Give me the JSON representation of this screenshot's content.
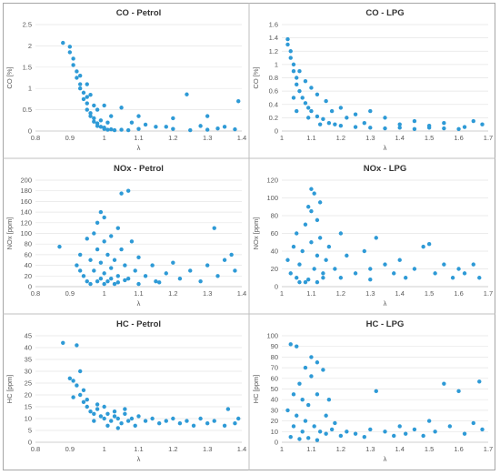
{
  "chart_data": [
    {
      "type": "scatter",
      "title": "CO - Petrol",
      "xlabel": "λ",
      "ylabel": "CO [%]",
      "xlim": [
        0.8,
        1.4
      ],
      "ylim": [
        0,
        2.5
      ],
      "xticks": [
        "0.8",
        "0.9",
        "1",
        "1.1",
        "1.2",
        "1.3",
        "1.4"
      ],
      "yticks": [
        "0",
        "0.5",
        "1",
        "1.5",
        "2",
        "2.5"
      ],
      "color": "#2e9ad6",
      "points": [
        [
          0.88,
          2.07
        ],
        [
          0.9,
          1.98
        ],
        [
          0.9,
          1.85
        ],
        [
          0.91,
          1.7
        ],
        [
          0.91,
          1.55
        ],
        [
          0.92,
          1.4
        ],
        [
          0.92,
          1.25
        ],
        [
          0.93,
          1.1
        ],
        [
          0.93,
          1.0
        ],
        [
          0.94,
          0.9
        ],
        [
          0.94,
          0.75
        ],
        [
          0.95,
          0.65
        ],
        [
          0.95,
          0.5
        ],
        [
          0.96,
          0.42
        ],
        [
          0.96,
          0.35
        ],
        [
          0.97,
          0.3
        ],
        [
          0.97,
          0.22
        ],
        [
          0.98,
          0.18
        ],
        [
          0.98,
          0.12
        ],
        [
          0.99,
          0.1
        ],
        [
          1.0,
          0.08
        ],
        [
          1.0,
          0.05
        ],
        [
          1.01,
          0.03
        ],
        [
          1.02,
          0.04
        ],
        [
          1.03,
          0.02
        ],
        [
          1.05,
          0.03
        ],
        [
          1.07,
          0.02
        ],
        [
          1.1,
          0.05
        ],
        [
          1.15,
          0.1
        ],
        [
          1.2,
          0.05
        ],
        [
          1.25,
          0.02
        ],
        [
          1.3,
          0.03
        ],
        [
          1.35,
          0.1
        ],
        [
          1.38,
          0.04
        ],
        [
          1.24,
          0.86
        ],
        [
          1.39,
          0.7
        ],
        [
          1.3,
          0.35
        ],
        [
          1.2,
          0.3
        ],
        [
          1.1,
          0.35
        ],
        [
          1.05,
          0.55
        ],
        [
          1.0,
          0.6
        ],
        [
          0.96,
          0.85
        ],
        [
          0.93,
          1.3
        ],
        [
          0.95,
          1.1
        ],
        [
          0.98,
          0.5
        ],
        [
          1.02,
          0.35
        ],
        [
          1.08,
          0.2
        ],
        [
          1.12,
          0.15
        ],
        [
          1.18,
          0.1
        ],
        [
          1.28,
          0.12
        ],
        [
          1.33,
          0.06
        ],
        [
          0.99,
          0.25
        ],
        [
          1.01,
          0.2
        ],
        [
          0.97,
          0.6
        ],
        [
          0.95,
          0.8
        ]
      ]
    },
    {
      "type": "scatter",
      "title": "CO - LPG",
      "xlabel": "λ",
      "ylabel": "CO [%]",
      "xlim": [
        1,
        1.7
      ],
      "ylim": [
        0,
        1.6
      ],
      "xticks": [
        "1",
        "1.1",
        "1.2",
        "1.3",
        "1.4",
        "1.5",
        "1.6",
        "1.7"
      ],
      "yticks": [
        "0",
        "0.2",
        "0.4",
        "0.6",
        "0.8",
        "1",
        "1.2",
        "1.4",
        "1.6"
      ],
      "color": "#2e9ad6",
      "points": [
        [
          1.02,
          1.38
        ],
        [
          1.02,
          1.3
        ],
        [
          1.03,
          1.2
        ],
        [
          1.03,
          1.1
        ],
        [
          1.04,
          1.0
        ],
        [
          1.04,
          0.9
        ],
        [
          1.05,
          0.8
        ],
        [
          1.05,
          0.7
        ],
        [
          1.06,
          0.6
        ],
        [
          1.07,
          0.5
        ],
        [
          1.08,
          0.42
        ],
        [
          1.09,
          0.35
        ],
        [
          1.1,
          0.3
        ],
        [
          1.12,
          0.22
        ],
        [
          1.14,
          0.18
        ],
        [
          1.16,
          0.12
        ],
        [
          1.18,
          0.1
        ],
        [
          1.2,
          0.08
        ],
        [
          1.25,
          0.06
        ],
        [
          1.3,
          0.05
        ],
        [
          1.35,
          0.04
        ],
        [
          1.4,
          0.05
        ],
        [
          1.45,
          0.03
        ],
        [
          1.5,
          0.05
        ],
        [
          1.55,
          0.04
        ],
        [
          1.6,
          0.03
        ],
        [
          1.65,
          0.15
        ],
        [
          1.68,
          0.1
        ],
        [
          1.3,
          0.3
        ],
        [
          1.25,
          0.25
        ],
        [
          1.2,
          0.35
        ],
        [
          1.15,
          0.45
        ],
        [
          1.1,
          0.65
        ],
        [
          1.08,
          0.75
        ],
        [
          1.06,
          0.9
        ],
        [
          1.12,
          0.55
        ],
        [
          1.35,
          0.2
        ],
        [
          1.45,
          0.15
        ],
        [
          1.55,
          0.12
        ],
        [
          1.22,
          0.2
        ],
        [
          1.17,
          0.3
        ],
        [
          1.05,
          0.3
        ],
        [
          1.04,
          0.5
        ],
        [
          1.09,
          0.2
        ],
        [
          1.13,
          0.1
        ],
        [
          1.28,
          0.12
        ],
        [
          1.4,
          0.1
        ],
        [
          1.5,
          0.08
        ],
        [
          1.62,
          0.06
        ]
      ]
    },
    {
      "type": "scatter",
      "title": "NOx - Petrol",
      "xlabel": "λ",
      "ylabel": "NOx [ppm]",
      "xlim": [
        0.8,
        1.4
      ],
      "ylim": [
        0,
        200
      ],
      "xticks": [
        "0.8",
        "0.9",
        "1",
        "1.1",
        "1.2",
        "1.3",
        "1.4"
      ],
      "yticks": [
        "0",
        "20",
        "40",
        "60",
        "80",
        "100",
        "120",
        "140",
        "160",
        "180",
        "200"
      ],
      "color": "#2e9ad6",
      "points": [
        [
          0.87,
          75
        ],
        [
          0.92,
          40
        ],
        [
          0.93,
          60
        ],
        [
          0.94,
          20
        ],
        [
          0.95,
          90
        ],
        [
          0.95,
          10
        ],
        [
          0.96,
          50
        ],
        [
          0.97,
          30
        ],
        [
          0.97,
          100
        ],
        [
          0.98,
          120
        ],
        [
          0.98,
          70
        ],
        [
          0.99,
          15
        ],
        [
          0.99,
          45
        ],
        [
          1.0,
          25
        ],
        [
          1.0,
          85
        ],
        [
          1.0,
          130
        ],
        [
          1.01,
          60
        ],
        [
          1.01,
          10
        ],
        [
          1.02,
          35
        ],
        [
          1.02,
          95
        ],
        [
          1.03,
          5
        ],
        [
          1.03,
          50
        ],
        [
          1.04,
          110
        ],
        [
          1.04,
          20
        ],
        [
          1.05,
          175
        ],
        [
          1.05,
          70
        ],
        [
          1.06,
          40
        ],
        [
          1.07,
          180
        ],
        [
          1.07,
          15
        ],
        [
          1.08,
          85
        ],
        [
          1.09,
          30
        ],
        [
          1.1,
          55
        ],
        [
          1.12,
          20
        ],
        [
          1.14,
          40
        ],
        [
          1.15,
          10
        ],
        [
          1.18,
          25
        ],
        [
          1.2,
          45
        ],
        [
          1.22,
          15
        ],
        [
          1.25,
          30
        ],
        [
          1.28,
          10
        ],
        [
          1.3,
          40
        ],
        [
          1.32,
          110
        ],
        [
          1.33,
          20
        ],
        [
          1.35,
          50
        ],
        [
          1.37,
          60
        ],
        [
          1.38,
          30
        ],
        [
          0.96,
          5
        ],
        [
          0.98,
          10
        ],
        [
          1.0,
          5
        ],
        [
          1.02,
          15
        ],
        [
          1.04,
          8
        ],
        [
          1.06,
          12
        ],
        [
          1.1,
          5
        ],
        [
          1.16,
          8
        ],
        [
          0.93,
          30
        ],
        [
          0.99,
          140
        ]
      ]
    },
    {
      "type": "scatter",
      "title": "NOx - LPG",
      "xlabel": "λ",
      "ylabel": "NOx [ppm]",
      "xlim": [
        1,
        1.7
      ],
      "ylim": [
        0,
        120
      ],
      "xticks": [
        "1",
        "1.1",
        "1.2",
        "1.3",
        "1.4",
        "1.5",
        "1.6",
        "1.7"
      ],
      "yticks": [
        "0",
        "20",
        "40",
        "60",
        "80",
        "100",
        "120"
      ],
      "color": "#2e9ad6",
      "points": [
        [
          1.02,
          30
        ],
        [
          1.03,
          15
        ],
        [
          1.04,
          45
        ],
        [
          1.05,
          60
        ],
        [
          1.05,
          10
        ],
        [
          1.06,
          25
        ],
        [
          1.07,
          40
        ],
        [
          1.08,
          70
        ],
        [
          1.08,
          5
        ],
        [
          1.09,
          90
        ],
        [
          1.1,
          110
        ],
        [
          1.1,
          50
        ],
        [
          1.11,
          105
        ],
        [
          1.11,
          20
        ],
        [
          1.12,
          75
        ],
        [
          1.12,
          35
        ],
        [
          1.13,
          55
        ],
        [
          1.14,
          15
        ],
        [
          1.15,
          30
        ],
        [
          1.16,
          45
        ],
        [
          1.18,
          20
        ],
        [
          1.2,
          60
        ],
        [
          1.22,
          35
        ],
        [
          1.25,
          15
        ],
        [
          1.28,
          40
        ],
        [
          1.3,
          20
        ],
        [
          1.32,
          55
        ],
        [
          1.35,
          25
        ],
        [
          1.38,
          15
        ],
        [
          1.4,
          30
        ],
        [
          1.42,
          10
        ],
        [
          1.45,
          20
        ],
        [
          1.48,
          45
        ],
        [
          1.5,
          48
        ],
        [
          1.52,
          15
        ],
        [
          1.55,
          25
        ],
        [
          1.58,
          10
        ],
        [
          1.6,
          20
        ],
        [
          1.62,
          15
        ],
        [
          1.65,
          25
        ],
        [
          1.67,
          10
        ],
        [
          1.06,
          5
        ],
        [
          1.09,
          8
        ],
        [
          1.12,
          5
        ],
        [
          1.14,
          10
        ],
        [
          1.2,
          10
        ],
        [
          1.3,
          8
        ],
        [
          1.1,
          85
        ],
        [
          1.13,
          95
        ]
      ]
    },
    {
      "type": "scatter",
      "title": "HC - Petrol",
      "xlabel": "λ",
      "ylabel": "HC [ppm]",
      "xlim": [
        0.8,
        1.4
      ],
      "ylim": [
        0,
        45
      ],
      "xticks": [
        "0.8",
        "0.9",
        "1",
        "1.1",
        "1.2",
        "1.3",
        "1.4"
      ],
      "yticks": [
        "0",
        "5",
        "10",
        "15",
        "20",
        "25",
        "30",
        "35",
        "40",
        "45"
      ],
      "color": "#2e9ad6",
      "points": [
        [
          0.88,
          42
        ],
        [
          0.92,
          41
        ],
        [
          0.9,
          27
        ],
        [
          0.91,
          26
        ],
        [
          0.93,
          30
        ],
        [
          0.92,
          24
        ],
        [
          0.91,
          19
        ],
        [
          0.93,
          20
        ],
        [
          0.94,
          17
        ],
        [
          0.95,
          15
        ],
        [
          0.96,
          13
        ],
        [
          0.97,
          12
        ],
        [
          0.98,
          14
        ],
        [
          0.99,
          11
        ],
        [
          1.0,
          10
        ],
        [
          1.01,
          12
        ],
        [
          1.02,
          9
        ],
        [
          1.03,
          11
        ],
        [
          1.04,
          10
        ],
        [
          1.05,
          8
        ],
        [
          1.06,
          12
        ],
        [
          1.07,
          9
        ],
        [
          1.08,
          10
        ],
        [
          1.1,
          11
        ],
        [
          1.12,
          9
        ],
        [
          1.14,
          10
        ],
        [
          1.16,
          8
        ],
        [
          1.18,
          9
        ],
        [
          1.2,
          10
        ],
        [
          1.22,
          8
        ],
        [
          1.24,
          9
        ],
        [
          1.26,
          7
        ],
        [
          1.28,
          10
        ],
        [
          1.3,
          8
        ],
        [
          1.32,
          9
        ],
        [
          1.35,
          7
        ],
        [
          1.36,
          14
        ],
        [
          1.38,
          8
        ],
        [
          1.39,
          10
        ],
        [
          0.95,
          18
        ],
        [
          0.98,
          16
        ],
        [
          1.0,
          15
        ],
        [
          1.03,
          13
        ],
        [
          1.06,
          14
        ],
        [
          0.94,
          22
        ],
        [
          0.97,
          9
        ],
        [
          1.01,
          7
        ],
        [
          1.04,
          6
        ],
        [
          1.09,
          7
        ]
      ]
    },
    {
      "type": "scatter",
      "title": "HC - LPG",
      "xlabel": "λ",
      "ylabel": "HC [ppm]",
      "xlim": [
        1,
        1.7
      ],
      "ylim": [
        0,
        100
      ],
      "xticks": [
        "1",
        "1.1",
        "1.2",
        "1.3",
        "1.4",
        "1.5",
        "1.6",
        "1.7"
      ],
      "yticks": [
        "0",
        "10",
        "20",
        "30",
        "40",
        "50",
        "60",
        "70",
        "80",
        "90",
        "100"
      ],
      "color": "#2e9ad6",
      "points": [
        [
          1.03,
          92
        ],
        [
          1.05,
          90
        ],
        [
          1.1,
          80
        ],
        [
          1.08,
          70
        ],
        [
          1.12,
          75
        ],
        [
          1.1,
          62
        ],
        [
          1.14,
          68
        ],
        [
          1.06,
          55
        ],
        [
          1.04,
          45
        ],
        [
          1.07,
          40
        ],
        [
          1.09,
          35
        ],
        [
          1.02,
          30
        ],
        [
          1.05,
          25
        ],
        [
          1.08,
          20
        ],
        [
          1.11,
          15
        ],
        [
          1.13,
          10
        ],
        [
          1.15,
          8
        ],
        [
          1.17,
          12
        ],
        [
          1.2,
          6
        ],
        [
          1.22,
          10
        ],
        [
          1.25,
          8
        ],
        [
          1.28,
          5
        ],
        [
          1.3,
          12
        ],
        [
          1.32,
          48
        ],
        [
          1.35,
          10
        ],
        [
          1.38,
          6
        ],
        [
          1.4,
          15
        ],
        [
          1.42,
          8
        ],
        [
          1.45,
          12
        ],
        [
          1.48,
          6
        ],
        [
          1.5,
          20
        ],
        [
          1.52,
          10
        ],
        [
          1.55,
          55
        ],
        [
          1.57,
          15
        ],
        [
          1.6,
          48
        ],
        [
          1.62,
          8
        ],
        [
          1.65,
          18
        ],
        [
          1.67,
          57
        ],
        [
          1.68,
          12
        ],
        [
          1.03,
          5
        ],
        [
          1.06,
          3
        ],
        [
          1.09,
          4
        ],
        [
          1.12,
          2
        ],
        [
          1.15,
          25
        ],
        [
          1.18,
          18
        ],
        [
          1.12,
          45
        ],
        [
          1.16,
          40
        ],
        [
          1.04,
          15
        ],
        [
          1.07,
          10
        ]
      ]
    }
  ]
}
